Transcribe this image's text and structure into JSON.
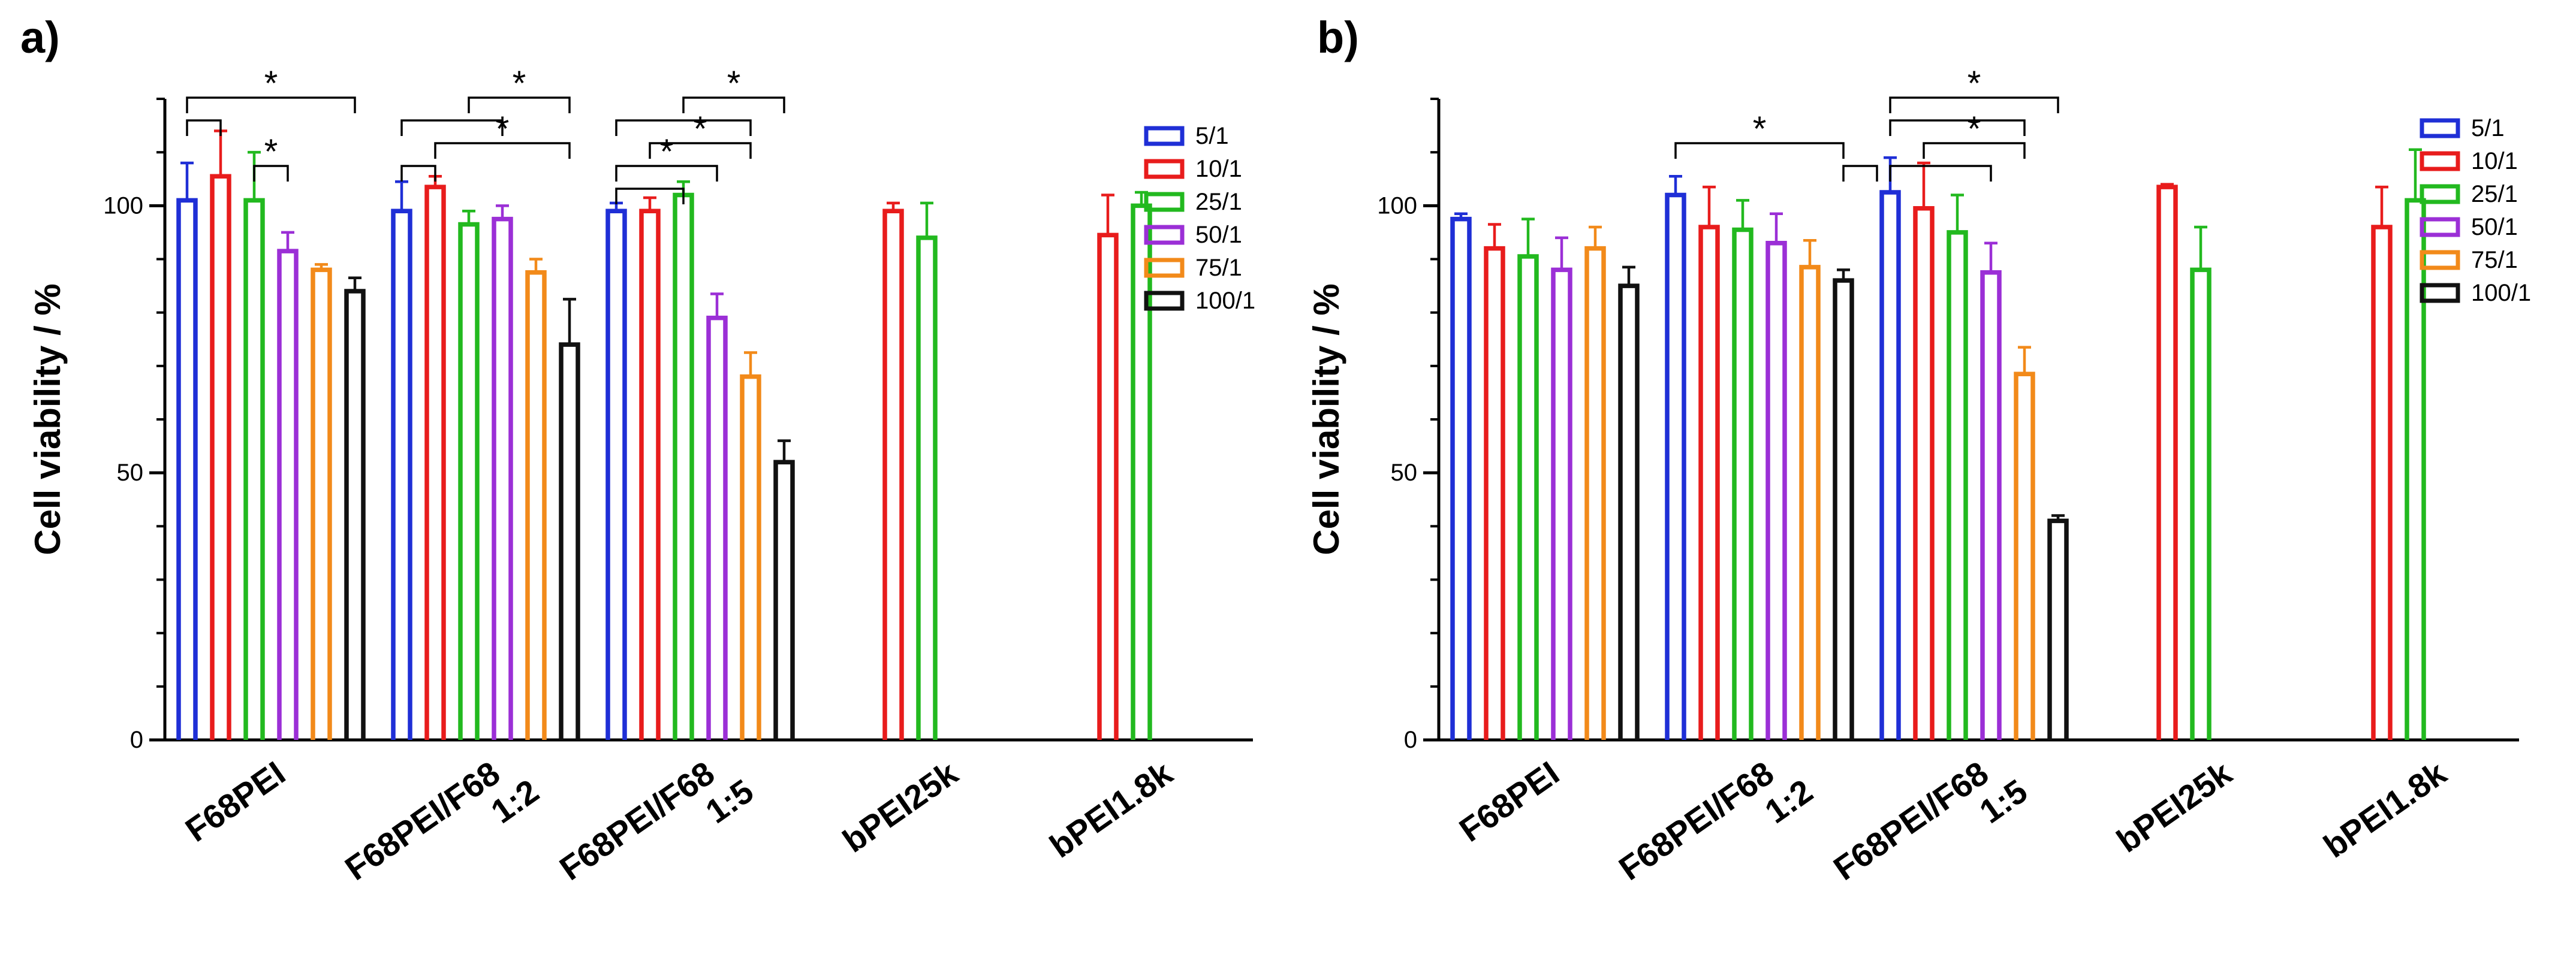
{
  "figure": {
    "series_colors": {
      "5/1": "#1f2fd6",
      "10/1": "#e81c1c",
      "25/1": "#22b91f",
      "50/1": "#9b2fd6",
      "75/1": "#f28a1a",
      "100/1": "#111111"
    },
    "legend_labels": [
      "5/1",
      "10/1",
      "25/1",
      "50/1",
      "75/1",
      "100/1"
    ]
  },
  "chart_data": [
    {
      "panel_label": "a)",
      "type": "bar",
      "ylabel": "Cell viability / %",
      "xlabel": "",
      "ylim": [
        0,
        120
      ],
      "yticks": [
        0,
        50,
        100
      ],
      "legend_position": "top-right",
      "groups": [
        {
          "label_lines": [
            "F68PEI"
          ],
          "bars": [
            {
              "series": "5/1",
              "value": 101,
              "error": 7
            },
            {
              "series": "10/1",
              "value": 105.5,
              "error": 8.5
            },
            {
              "series": "25/1",
              "value": 101,
              "error": 9
            },
            {
              "series": "50/1",
              "value": 91.5,
              "error": 3.5
            },
            {
              "series": "75/1",
              "value": 88,
              "error": 1
            },
            {
              "series": "100/1",
              "value": 84,
              "error": 2.5
            }
          ]
        },
        {
          "label_lines": [
            "F68PEI/F68",
            "1:2"
          ],
          "bars": [
            {
              "series": "5/1",
              "value": 99,
              "error": 5.5
            },
            {
              "series": "10/1",
              "value": 103.5,
              "error": 2
            },
            {
              "series": "25/1",
              "value": 96.5,
              "error": 2.5
            },
            {
              "series": "50/1",
              "value": 97.5,
              "error": 2.5
            },
            {
              "series": "75/1",
              "value": 87.5,
              "error": 2.5
            },
            {
              "series": "100/1",
              "value": 74,
              "error": 8.5
            }
          ]
        },
        {
          "label_lines": [
            "F68PEI/F68",
            "1:5"
          ],
          "bars": [
            {
              "series": "5/1",
              "value": 99,
              "error": 1.5
            },
            {
              "series": "10/1",
              "value": 99,
              "error": 2.5
            },
            {
              "series": "25/1",
              "value": 102,
              "error": 2.5
            },
            {
              "series": "50/1",
              "value": 79,
              "error": 4.5
            },
            {
              "series": "75/1",
              "value": 68,
              "error": 4.5
            },
            {
              "series": "100/1",
              "value": 52,
              "error": 4
            }
          ]
        },
        {
          "label_lines": [
            "bPEI25k"
          ],
          "bars": [
            {
              "series": "10/1",
              "value": 99,
              "error": 1.5
            },
            {
              "series": "25/1",
              "value": 94,
              "error": 6.5
            }
          ]
        },
        {
          "label_lines": [
            "bPEI1.8k"
          ],
          "bars": [
            {
              "series": "10/1",
              "value": 94.5,
              "error": 7.5
            },
            {
              "series": "25/1",
              "value": 100,
              "error": 2.5
            }
          ]
        }
      ],
      "significance_markers": [
        {
          "label": "*",
          "group": 0,
          "from": 0,
          "to": 5,
          "level": 5
        },
        {
          "label": "",
          "group": 0,
          "from": 0,
          "to": 1,
          "level": 4
        },
        {
          "label": "*",
          "group": 0,
          "from": 2,
          "to": 3,
          "level": 2
        },
        {
          "label": "*",
          "group": 1,
          "from": 2,
          "to": 5,
          "level": 5
        },
        {
          "label": "",
          "group": 1,
          "from": 0,
          "to": 3,
          "level": 4
        },
        {
          "label": "*",
          "group": 1,
          "from": 1,
          "to": 5,
          "level": 3
        },
        {
          "label": "",
          "group": 1,
          "from": 0,
          "to": 1,
          "level": 2
        },
        {
          "label": "*",
          "group": 2,
          "from": 2,
          "to": 5,
          "level": 5
        },
        {
          "label": "",
          "group": 2,
          "from": 0,
          "to": 4,
          "level": 4
        },
        {
          "label": "*",
          "group": 2,
          "from": 1,
          "to": 4,
          "level": 3
        },
        {
          "label": "*",
          "group": 2,
          "from": 0,
          "to": 3,
          "level": 2
        },
        {
          "label": "",
          "group": 2,
          "from": 0,
          "to": 2,
          "level": 1
        }
      ]
    },
    {
      "panel_label": "b)",
      "type": "bar",
      "ylabel": "Cell viability / %",
      "xlabel": "",
      "ylim": [
        0,
        120
      ],
      "yticks": [
        0,
        50,
        100
      ],
      "legend_position": "top-right",
      "groups": [
        {
          "label_lines": [
            "F68PEI"
          ],
          "bars": [
            {
              "series": "5/1",
              "value": 97.5,
              "error": 1
            },
            {
              "series": "10/1",
              "value": 92,
              "error": 4.5
            },
            {
              "series": "25/1",
              "value": 90.5,
              "error": 7
            },
            {
              "series": "50/1",
              "value": 88,
              "error": 6
            },
            {
              "series": "75/1",
              "value": 92,
              "error": 4
            },
            {
              "series": "100/1",
              "value": 85,
              "error": 3.5
            }
          ]
        },
        {
          "label_lines": [
            "F68PEI/F68",
            "1:2"
          ],
          "bars": [
            {
              "series": "5/1",
              "value": 102,
              "error": 3.5
            },
            {
              "series": "10/1",
              "value": 96,
              "error": 7.5
            },
            {
              "series": "25/1",
              "value": 95.5,
              "error": 5.5
            },
            {
              "series": "50/1",
              "value": 93,
              "error": 5.5
            },
            {
              "series": "75/1",
              "value": 88.5,
              "error": 5
            },
            {
              "series": "100/1",
              "value": 86,
              "error": 2
            }
          ]
        },
        {
          "label_lines": [
            "F68PEI/F68",
            "1:5"
          ],
          "bars": [
            {
              "series": "5/1",
              "value": 102.5,
              "error": 6.5
            },
            {
              "series": "10/1",
              "value": 99.5,
              "error": 8.5
            },
            {
              "series": "25/1",
              "value": 95,
              "error": 7
            },
            {
              "series": "50/1",
              "value": 87.5,
              "error": 5.5
            },
            {
              "series": "75/1",
              "value": 68.5,
              "error": 5
            },
            {
              "series": "100/1",
              "value": 41,
              "error": 1
            }
          ]
        },
        {
          "label_lines": [
            "bPEI25k"
          ],
          "bars": [
            {
              "series": "10/1",
              "value": 103.5,
              "error": 0.5
            },
            {
              "series": "25/1",
              "value": 88,
              "error": 8
            }
          ]
        },
        {
          "label_lines": [
            "bPEI1.8k"
          ],
          "bars": [
            {
              "series": "10/1",
              "value": 96,
              "error": 7.5
            },
            {
              "series": "25/1",
              "value": 101,
              "error": 9.5
            }
          ]
        }
      ],
      "significance_markers": [
        {
          "label": "*",
          "group": 1,
          "from": 0,
          "to": 5,
          "level": 3
        },
        {
          "label": "",
          "group": 1,
          "from": 5,
          "to": 6,
          "level": 2
        },
        {
          "label": "*",
          "group": 2,
          "from": 0,
          "to": 5,
          "level": 5
        },
        {
          "label": "",
          "group": 2,
          "from": 0,
          "to": 4,
          "level": 4
        },
        {
          "label": "*",
          "group": 2,
          "from": 1,
          "to": 4,
          "level": 3
        },
        {
          "label": "",
          "group": 2,
          "from": 0,
          "to": 3,
          "level": 2
        }
      ]
    }
  ]
}
